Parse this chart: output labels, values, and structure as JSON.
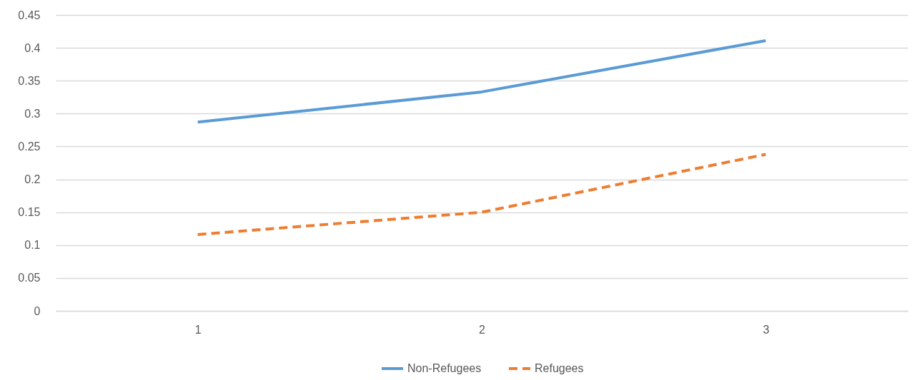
{
  "chart_data": {
    "type": "line",
    "categories": [
      "1",
      "2",
      "3"
    ],
    "series": [
      {
        "name": "Non-Refugees",
        "color": "#5b9bd5",
        "line_style": "solid",
        "values": [
          0.287,
          0.333,
          0.411
        ]
      },
      {
        "name": "Refugees",
        "color": "#ed7d31",
        "line_style": "dashed",
        "values": [
          0.116,
          0.15,
          0.238
        ]
      }
    ],
    "ylim": [
      0,
      0.45
    ],
    "yticks": [
      0,
      0.05,
      0.1,
      0.15,
      0.2,
      0.25,
      0.3,
      0.35,
      0.4,
      0.45
    ],
    "grid": "y",
    "legend": "bottom"
  }
}
